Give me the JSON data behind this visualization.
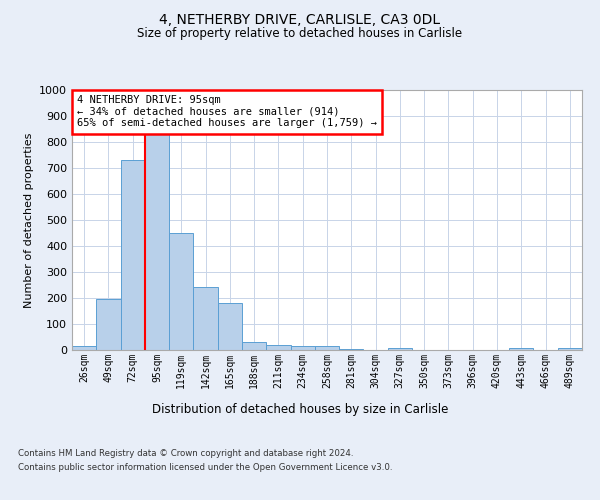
{
  "title_line1": "4, NETHERBY DRIVE, CARLISLE, CA3 0DL",
  "title_line2": "Size of property relative to detached houses in Carlisle",
  "xlabel": "Distribution of detached houses by size in Carlisle",
  "ylabel": "Number of detached properties",
  "bin_labels": [
    "26sqm",
    "49sqm",
    "72sqm",
    "95sqm",
    "119sqm",
    "142sqm",
    "165sqm",
    "188sqm",
    "211sqm",
    "234sqm",
    "258sqm",
    "281sqm",
    "304sqm",
    "327sqm",
    "350sqm",
    "373sqm",
    "396sqm",
    "420sqm",
    "443sqm",
    "466sqm",
    "489sqm"
  ],
  "bar_values": [
    14,
    196,
    732,
    838,
    450,
    242,
    180,
    32,
    20,
    15,
    15,
    5,
    0,
    8,
    0,
    0,
    0,
    0,
    8,
    0,
    8
  ],
  "bar_color": "#b8d0ea",
  "bar_edge_color": "#5a9fd4",
  "red_line_x": 2.5,
  "annotation_text": "4 NETHERBY DRIVE: 95sqm\n← 34% of detached houses are smaller (914)\n65% of semi-detached houses are larger (1,759) →",
  "annotation_box_color": "white",
  "annotation_box_edge_color": "red",
  "ylim": [
    0,
    1000
  ],
  "yticks": [
    0,
    100,
    200,
    300,
    400,
    500,
    600,
    700,
    800,
    900,
    1000
  ],
  "footer_line1": "Contains HM Land Registry data © Crown copyright and database right 2024.",
  "footer_line2": "Contains public sector information licensed under the Open Government Licence v3.0.",
  "background_color": "#e8eef8",
  "plot_bg_color": "white",
  "grid_color": "#c8d4e8"
}
